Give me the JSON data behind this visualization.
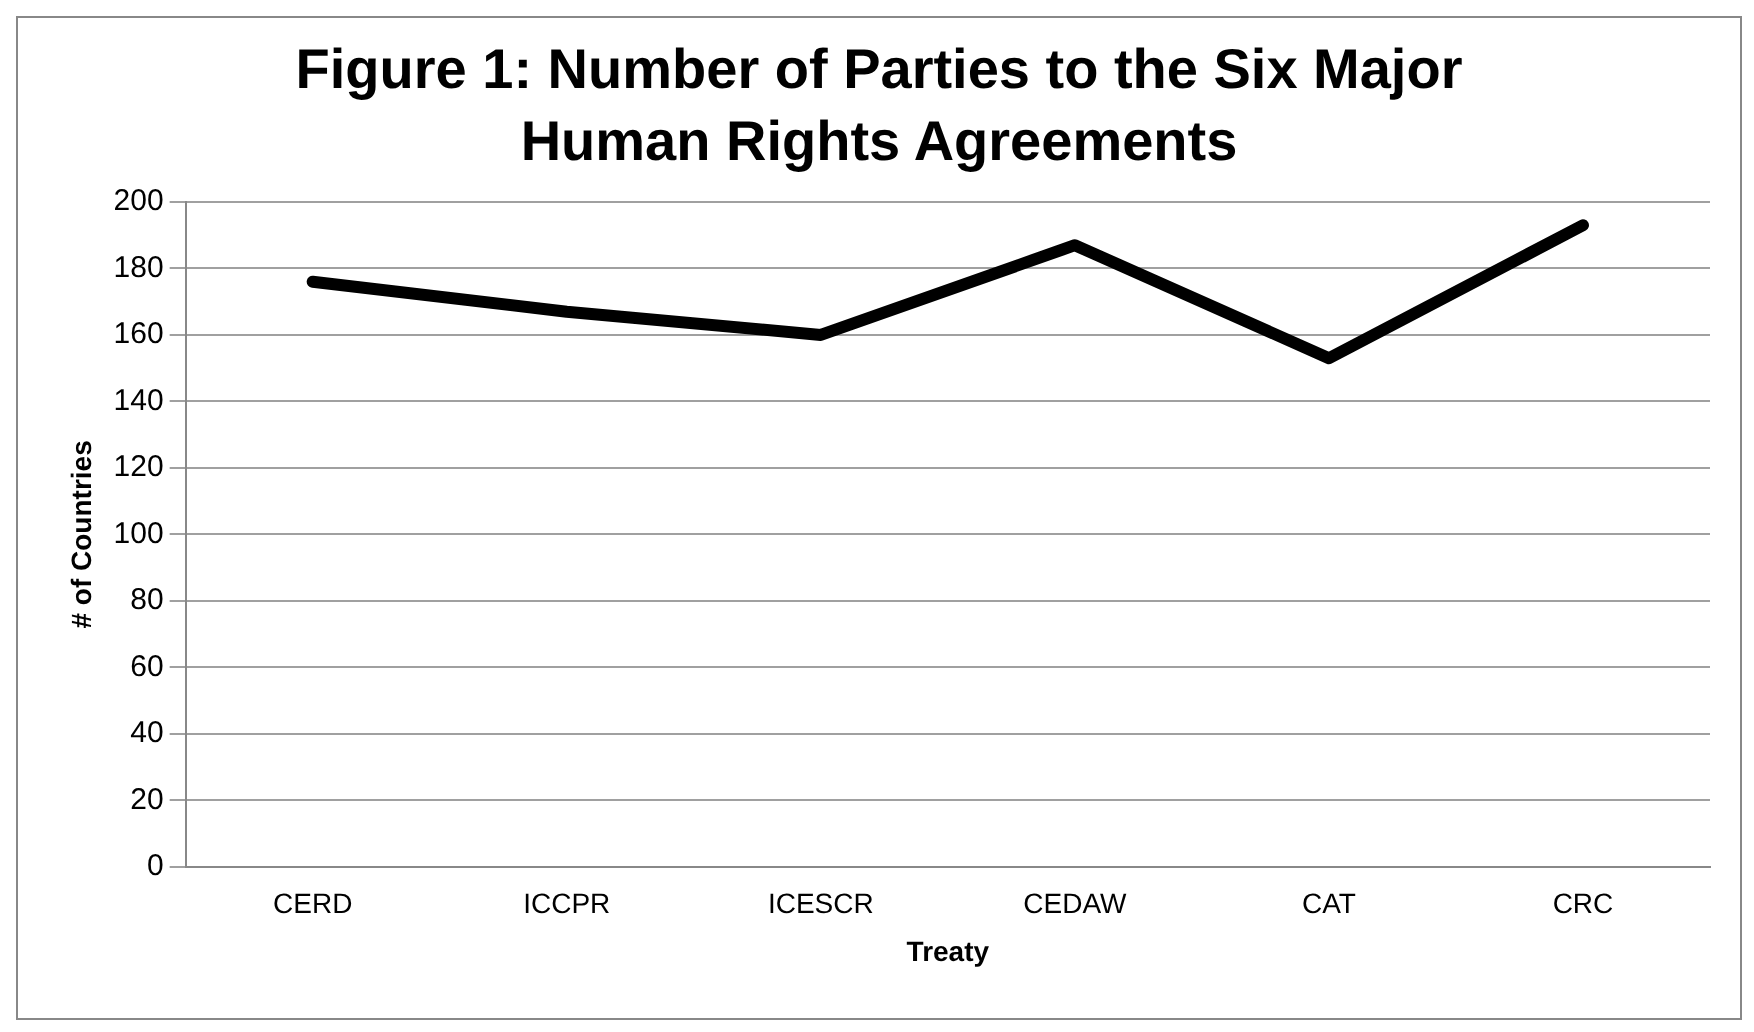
{
  "chart_data": {
    "type": "line",
    "title": "Figure 1: Number of Parties to the Six Major Human Rights Agreements",
    "xlabel": "Treaty",
    "ylabel": "# of Countries",
    "categories": [
      "CERD",
      "ICCPR",
      "ICESCR",
      "CEDAW",
      "CAT",
      "CRC"
    ],
    "series": [
      {
        "color": "#000000",
        "values": [
          176,
          167,
          160,
          187,
          153,
          193
        ]
      }
    ],
    "ylim": [
      0,
      200
    ],
    "yticks": [
      0,
      20,
      40,
      60,
      80,
      100,
      120,
      140,
      160,
      180,
      200
    ],
    "grid": "y",
    "legend": false,
    "marker": "none",
    "line_style": "solid"
  }
}
